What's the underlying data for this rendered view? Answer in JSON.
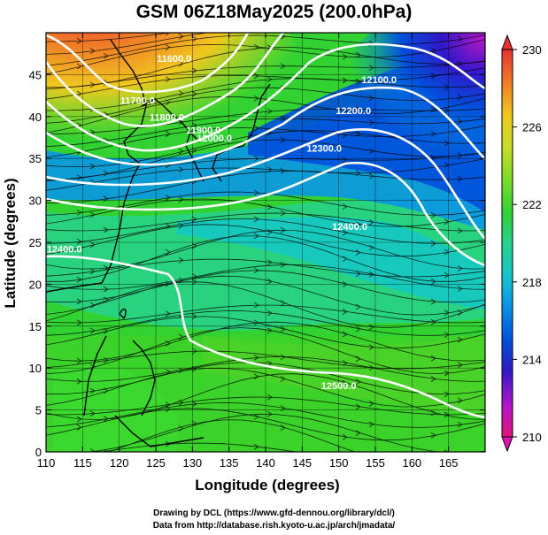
{
  "title": "GSM 06Z18May2025 (200.0hPa)",
  "map": {
    "xlabel": "Longitude (degrees)",
    "ylabel": "Latitude  (degrees)",
    "lon_ticks": [
      "110",
      "115",
      "120",
      "125",
      "130",
      "135",
      "140",
      "145",
      "150",
      "155",
      "160",
      "165"
    ],
    "lat_ticks": [
      "0",
      "5",
      "10",
      "15",
      "20",
      "25",
      "30",
      "35",
      "40",
      "45"
    ],
    "lon_range": [
      110,
      170
    ],
    "lat_range": [
      0,
      50
    ],
    "contour_labels": [
      {
        "text": "11600.0",
        "lon": 127.5,
        "lat": 46.5
      },
      {
        "text": "11700.0",
        "lon": 122.5,
        "lat": 41.5
      },
      {
        "text": "11800.0",
        "lon": 126.5,
        "lat": 39.5
      },
      {
        "text": "11900.0",
        "lon": 131.5,
        "lat": 38.0
      },
      {
        "text": "12000.0",
        "lon": 133.0,
        "lat": 37.0
      },
      {
        "text": "12100.0",
        "lon": 155.5,
        "lat": 44.0
      },
      {
        "text": "12200.0",
        "lon": 152.0,
        "lat": 40.3
      },
      {
        "text": "12300.0",
        "lon": 148.0,
        "lat": 35.8
      },
      {
        "text": "12400.0",
        "lon": 112.5,
        "lat": 23.8
      },
      {
        "text": "12400.0",
        "lon": 151.5,
        "lat": 26.5
      },
      {
        "text": "12500.0",
        "lon": 150.0,
        "lat": 7.5
      }
    ]
  },
  "colorbar": {
    "ticks": [
      "230",
      "226",
      "222",
      "218",
      "214",
      "210"
    ],
    "min": 210,
    "max": 230,
    "colors": [
      "#e0147a",
      "#b416c8",
      "#3218c8",
      "#0050dc",
      "#0a96e6",
      "#14c8c8",
      "#28d28c",
      "#32d232",
      "#78dc28",
      "#c8dc28",
      "#f0c81e",
      "#f07828",
      "#e83232"
    ]
  },
  "credits": {
    "line1": "Drawing by DCL (https://www.gfd-dennou.org/library/dcl/)",
    "line2": "Data from http://database.rish.kyoto-u.ac.jp/arch/jmadata/"
  }
}
